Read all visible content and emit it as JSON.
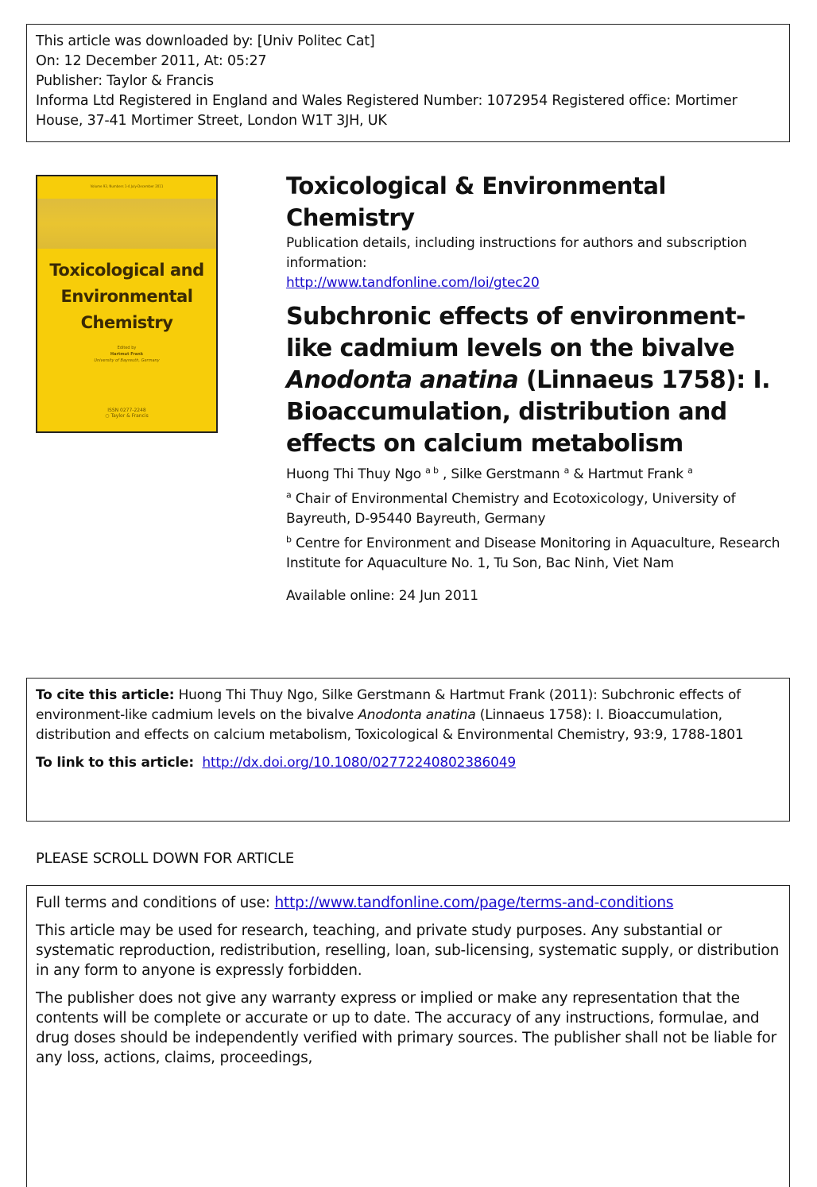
{
  "header": {
    "lines": [
      "This article was downloaded by: [Univ Politec Cat]",
      "On: 12 December 2011, At: 05:27",
      "Publisher: Taylor & Francis",
      "Informa Ltd Registered in England and Wales Registered Number: 1072954 Registered office: Mortimer House, 37-41 Mortimer Street, London W1T 3JH, UK"
    ]
  },
  "cover": {
    "volume": "Volume 93, Numbers 1-4 July-December 2011",
    "title_lines": [
      "Toxicological and",
      "Environmental",
      "Chemistry"
    ],
    "edited_by": "Edited by",
    "editor": "Hartmut Frank",
    "editor_affiliation": "University of Bayreuth, Germany",
    "issn": "ISSN 0277-2248",
    "publisher_logo": "Taylor & Francis"
  },
  "journal": {
    "title": "Toxicological & Environmental Chemistry",
    "details": "Publication details, including instructions for authors and subscription information:",
    "url": "http://www.tandfonline.com/loi/gtec20"
  },
  "article": {
    "title_1": "Subchronic effects of environment-like cadmium levels on the bivalve ",
    "title_italic": "Anodonta anatina",
    "title_2": " (Linnaeus 1758): I. Bioaccumulation, distribution and effects on calcium metabolism",
    "authors": [
      {
        "name": "Huong Thi Thuy Ngo",
        "aff": "a b"
      },
      {
        "name": "Silke Gerstmann",
        "aff": "a"
      },
      {
        "name": "Hartmut Frank",
        "aff": "a"
      }
    ],
    "sep1": " , ",
    "sep2": " & ",
    "affiliations": [
      {
        "key": "a",
        "text": " Chair of Environmental Chemistry and Ecotoxicology, University of Bayreuth, D-95440 Bayreuth, Germany"
      },
      {
        "key": "b",
        "text": " Centre for Environment and Disease Monitoring in Aquaculture, Research Institute for Aquaculture No. 1, Tu Son, Bac Ninh, Viet Nam"
      }
    ],
    "available": "Available online: 24 Jun 2011"
  },
  "cite": {
    "label": "To cite this article:",
    "text_1": " Huong Thi Thuy Ngo, Silke Gerstmann & Hartmut Frank (2011): Subchronic effects of environment-like cadmium levels on the bivalve ",
    "italic": "Anodonta anatina",
    "text_2": " (Linnaeus 1758): I. Bioaccumulation, distribution and effects on calcium metabolism, Toxicological & Environmental Chemistry, 93:9, 1788-1801",
    "link_label": "To link to this article:",
    "link": "http://dx.doi.org/10.1080/02772240802386049"
  },
  "scroll_notice": "PLEASE SCROLL DOWN FOR ARTICLE",
  "terms": {
    "label": "Full terms and conditions of use: ",
    "url": "http://www.tandfonline.com/page/terms-and-conditions",
    "p1": "This article may be used for research, teaching, and private study purposes. Any substantial or systematic reproduction, redistribution, reselling, loan, sub-licensing, systematic supply, or distribution in any form to anyone is expressly forbidden.",
    "p2": "The publisher does not give any warranty express or implied or make any representation that the contents will be complete or accurate or up to date. The accuracy of any instructions, formulae, and drug doses should be independently verified with primary sources. The publisher shall not be liable for any loss, actions, claims, proceedings,"
  }
}
